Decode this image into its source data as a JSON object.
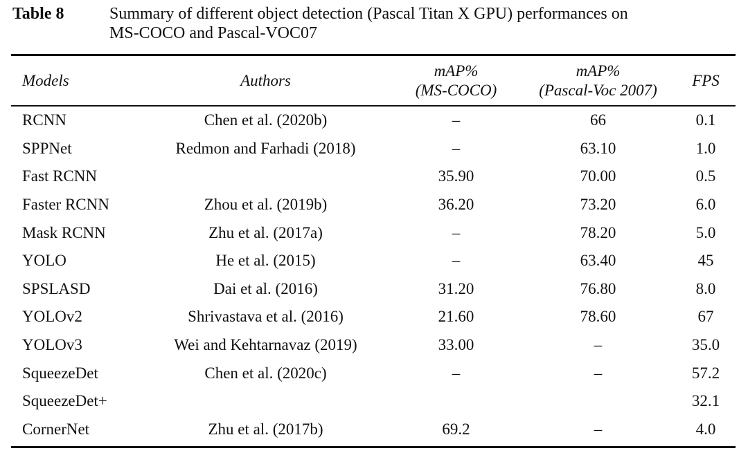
{
  "caption": {
    "label": "Table 8",
    "line1": "Summary of different object detection (Pascal Titan X GPU) performances on",
    "line2": "MS-COCO and Pascal-VOC07"
  },
  "headers": {
    "models": "Models",
    "authors": "Authors",
    "map_coco_1": "mAP%",
    "map_coco_2": "(MS-COCO)",
    "map_voc_1": "mAP%",
    "map_voc_2": "(Pascal-Voc 2007)",
    "fps": "FPS"
  },
  "rows": [
    {
      "model": "RCNN",
      "authors": "Chen et al. (2020b)",
      "coco": "–",
      "voc": "66",
      "fps": "0.1"
    },
    {
      "model": "SPPNet",
      "authors": "Redmon and Farhadi (2018)",
      "coco": "–",
      "voc": "63.10",
      "fps": "1.0"
    },
    {
      "model": "Fast RCNN",
      "authors": "",
      "coco": "35.90",
      "voc": "70.00",
      "fps": "0.5"
    },
    {
      "model": "Faster RCNN",
      "authors": "Zhou et al. (2019b)",
      "coco": "36.20",
      "voc": "73.20",
      "fps": "6.0"
    },
    {
      "model": "Mask RCNN",
      "authors": "Zhu et al. (2017a)",
      "coco": "–",
      "voc": "78.20",
      "fps": "5.0"
    },
    {
      "model": "YOLO",
      "authors": "He et al. (2015)",
      "coco": "–",
      "voc": "63.40",
      "fps": "45"
    },
    {
      "model": "SPSLASD",
      "authors": "Dai et al. (2016)",
      "coco": "31.20",
      "voc": "76.80",
      "fps": "8.0"
    },
    {
      "model": "YOLOv2",
      "authors": "Shrivastava et al. (2016)",
      "coco": "21.60",
      "voc": "78.60",
      "fps": "67"
    },
    {
      "model": "YOLOv3",
      "authors": "Wei and Kehtarnavaz (2019)",
      "coco": "33.00",
      "voc": "–",
      "fps": "35.0"
    },
    {
      "model": "SqueezeDet",
      "authors": "Chen et al. (2020c)",
      "coco": "–",
      "voc": "–",
      "fps": "57.2"
    },
    {
      "model": "SqueezeDet+",
      "authors": "",
      "coco": "",
      "voc": "",
      "fps": "32.1"
    },
    {
      "model": "CornerNet",
      "authors": "Zhu et al. (2017b)",
      "coco": "69.2",
      "voc": "–",
      "fps": "4.0"
    }
  ]
}
